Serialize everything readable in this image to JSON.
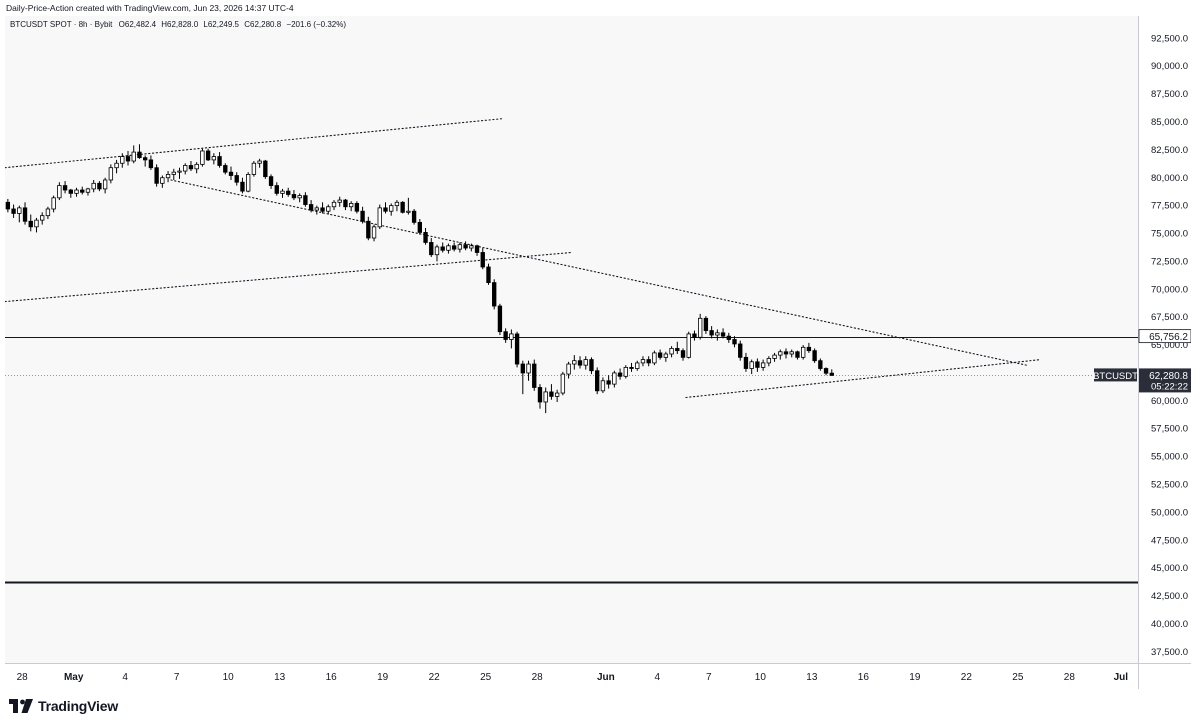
{
  "header": {
    "credit": "Daily-Price-Action created with TradingView.com, Jun 23, 2026 14:37 UTC-4"
  },
  "legend": {
    "symbol_text": "BTCUSDT SPOT · 8h · Bybit",
    "open_label": "O",
    "open": "62,482.4",
    "high_label": "H",
    "high": "62,828.0",
    "low_label": "L",
    "low": "62,249.5",
    "close_label": "C",
    "close": "62,280.8",
    "change": "−201.6 (−0.32%)"
  },
  "footer": {
    "brand": "TradingView"
  },
  "colors": {
    "background": "#f8f8f8",
    "candle_up_fill": "#ffffff",
    "candle_down_fill": "#000000",
    "candle_border": "#000000",
    "axis_text": "#131722",
    "label_bg": "#2a2e39",
    "level_line": "#131722"
  },
  "chart_data": {
    "type": "candlestick",
    "symbol": "BTCUSDT",
    "timeframe": "8h",
    "exchange": "Bybit",
    "ylim": [
      36500,
      94500
    ],
    "yticks": [
      37500,
      40000,
      42500,
      45000,
      47500,
      50000,
      52500,
      55000,
      57500,
      60000,
      62500,
      65000,
      67500,
      70000,
      72500,
      75000,
      77500,
      80000,
      82500,
      85000,
      87500,
      90000,
      92500
    ],
    "ytick_labels": [
      "37,500.0",
      "40,000.0",
      "42,500.0",
      "45,000.0",
      "47,500.0",
      "50,000.0",
      "52,500.0",
      "55,000.0",
      "57,500.0",
      "60,000.0",
      "62,500.0",
      "65,000.0",
      "67,500.0",
      "70,000.0",
      "72,500.0",
      "75,000.0",
      "77,500.0",
      "80,000.0",
      "82,500.0",
      "85,000.0",
      "87,500.0",
      "90,000.0",
      "92,500.0"
    ],
    "xlim": [
      "2026-04-27",
      "2026-07-02"
    ],
    "xticks": [
      {
        "date": "2026-04-28",
        "label": "28"
      },
      {
        "date": "2026-05-01",
        "label": "May",
        "bold": true
      },
      {
        "date": "2026-05-04",
        "label": "4"
      },
      {
        "date": "2026-05-07",
        "label": "7"
      },
      {
        "date": "2026-05-10",
        "label": "10"
      },
      {
        "date": "2026-05-13",
        "label": "13"
      },
      {
        "date": "2026-05-16",
        "label": "16"
      },
      {
        "date": "2026-05-19",
        "label": "19"
      },
      {
        "date": "2026-05-22",
        "label": "22"
      },
      {
        "date": "2026-05-25",
        "label": "25"
      },
      {
        "date": "2026-05-28",
        "label": "28"
      },
      {
        "date": "2026-06-01",
        "label": "Jun",
        "bold": true
      },
      {
        "date": "2026-06-04",
        "label": "4"
      },
      {
        "date": "2026-06-07",
        "label": "7"
      },
      {
        "date": "2026-06-10",
        "label": "10"
      },
      {
        "date": "2026-06-13",
        "label": "13"
      },
      {
        "date": "2026-06-16",
        "label": "16"
      },
      {
        "date": "2026-06-19",
        "label": "19"
      },
      {
        "date": "2026-06-22",
        "label": "22"
      },
      {
        "date": "2026-06-25",
        "label": "25"
      },
      {
        "date": "2026-06-28",
        "label": "28"
      },
      {
        "date": "2026-07-01",
        "label": "Jul",
        "bold": true
      }
    ],
    "candle_step_days": 0.3333,
    "first_candle_date": "2026-04-27T00:00",
    "candles": [
      [
        77800,
        78100,
        76900,
        77200
      ],
      [
        77200,
        77600,
        76400,
        76800
      ],
      [
        76800,
        77500,
        76000,
        77300
      ],
      [
        77300,
        77800,
        75800,
        76100
      ],
      [
        76100,
        76700,
        75200,
        75600
      ],
      [
        75600,
        76400,
        75100,
        76200
      ],
      [
        76200,
        76900,
        75800,
        76600
      ],
      [
        76600,
        77400,
        76300,
        77200
      ],
      [
        77200,
        78400,
        76900,
        78200
      ],
      [
        78200,
        79600,
        78000,
        79300
      ],
      [
        79300,
        79700,
        78600,
        78900
      ],
      [
        78900,
        79000,
        78200,
        78600
      ],
      [
        78600,
        79100,
        78300,
        78900
      ],
      [
        78900,
        79200,
        78500,
        78700
      ],
      [
        78700,
        79100,
        78400,
        79000
      ],
      [
        79000,
        79800,
        78700,
        79500
      ],
      [
        79500,
        79700,
        78800,
        79000
      ],
      [
        79000,
        80000,
        78600,
        79800
      ],
      [
        79800,
        81200,
        79500,
        80900
      ],
      [
        80900,
        81600,
        80400,
        81300
      ],
      [
        81300,
        82200,
        80900,
        81900
      ],
      [
        81900,
        82400,
        81100,
        81500
      ],
      [
        81500,
        82900,
        81300,
        82300
      ],
      [
        82300,
        83000,
        81700,
        81800
      ],
      [
        81800,
        82000,
        81000,
        81600
      ],
      [
        81600,
        82000,
        80700,
        80900
      ],
      [
        80900,
        81200,
        79200,
        79500
      ],
      [
        79500,
        80200,
        79100,
        80000
      ],
      [
        80000,
        80600,
        79600,
        80300
      ],
      [
        80300,
        80800,
        79800,
        80500
      ],
      [
        80500,
        80900,
        79900,
        80600
      ],
      [
        80600,
        81300,
        80300,
        81100
      ],
      [
        81100,
        81500,
        80600,
        80800
      ],
      [
        80800,
        81400,
        80400,
        81200
      ],
      [
        81200,
        82600,
        81000,
        82400
      ],
      [
        82400,
        82600,
        81500,
        81600
      ],
      [
        81600,
        82200,
        81200,
        81900
      ],
      [
        81900,
        82300,
        80900,
        81100
      ],
      [
        81100,
        81300,
        80300,
        80500
      ],
      [
        80500,
        81000,
        79800,
        80200
      ],
      [
        80200,
        80500,
        79300,
        79600
      ],
      [
        79600,
        80000,
        78600,
        78800
      ],
      [
        78800,
        80500,
        78700,
        80300
      ],
      [
        80300,
        81500,
        80100,
        81300
      ],
      [
        81300,
        81700,
        80900,
        81500
      ],
      [
        81500,
        81600,
        79900,
        80100
      ],
      [
        80100,
        80300,
        79000,
        79300
      ],
      [
        79300,
        79600,
        78400,
        78600
      ],
      [
        78600,
        79000,
        78200,
        78800
      ],
      [
        78800,
        79100,
        78300,
        78500
      ],
      [
        78500,
        78900,
        78000,
        78200
      ],
      [
        78200,
        78600,
        77800,
        78400
      ],
      [
        78400,
        78700,
        77400,
        77600
      ],
      [
        77600,
        78000,
        76900,
        77100
      ],
      [
        77100,
        77500,
        76700,
        77300
      ],
      [
        77300,
        77800,
        76800,
        77000
      ],
      [
        77000,
        77600,
        76700,
        77400
      ],
      [
        77400,
        78000,
        77100,
        77800
      ],
      [
        77800,
        78300,
        77400,
        78000
      ],
      [
        78000,
        78100,
        77100,
        77400
      ],
      [
        77400,
        77900,
        77000,
        77700
      ],
      [
        77700,
        77900,
        76800,
        77000
      ],
      [
        77000,
        77400,
        75900,
        76100
      ],
      [
        76100,
        76500,
        74400,
        74600
      ],
      [
        74600,
        75800,
        74300,
        75600
      ],
      [
        75600,
        77600,
        75400,
        77300
      ],
      [
        77300,
        77800,
        76800,
        77000
      ],
      [
        77000,
        77700,
        76600,
        77500
      ],
      [
        77500,
        78000,
        77000,
        77800
      ],
      [
        77800,
        77900,
        76800,
        76900
      ],
      [
        76900,
        78200,
        76700,
        77000
      ],
      [
        77000,
        77200,
        75800,
        76000
      ],
      [
        76000,
        76300,
        74900,
        75100
      ],
      [
        75100,
        75500,
        74000,
        74200
      ],
      [
        74200,
        74600,
        72900,
        73100
      ],
      [
        73100,
        74000,
        72500,
        73800
      ],
      [
        73800,
        74200,
        73300,
        73500
      ],
      [
        73500,
        74100,
        73200,
        73900
      ],
      [
        73900,
        74200,
        73400,
        73600
      ],
      [
        73600,
        74200,
        73300,
        74000
      ],
      [
        74000,
        74300,
        73500,
        73700
      ],
      [
        73700,
        74100,
        73400,
        73900
      ],
      [
        73900,
        74000,
        73000,
        73300
      ],
      [
        73300,
        73700,
        71800,
        72000
      ],
      [
        72000,
        72300,
        70400,
        70600
      ],
      [
        70600,
        70900,
        68200,
        68500
      ],
      [
        68500,
        68700,
        65900,
        66200
      ],
      [
        66200,
        66500,
        65200,
        65500
      ],
      [
        65500,
        66400,
        64700,
        66000
      ],
      [
        66000,
        66200,
        63000,
        63300
      ],
      [
        63300,
        63600,
        60600,
        62500
      ],
      [
        62500,
        63600,
        61800,
        63300
      ],
      [
        63300,
        63700,
        60900,
        61200
      ],
      [
        61200,
        61500,
        59300,
        59900
      ],
      [
        59900,
        61200,
        58900,
        60800
      ],
      [
        60800,
        61500,
        60100,
        60400
      ],
      [
        60400,
        61000,
        59900,
        60700
      ],
      [
        60700,
        62600,
        60500,
        62400
      ],
      [
        62400,
        63500,
        62000,
        63300
      ],
      [
        63300,
        64100,
        62800,
        63600
      ],
      [
        63600,
        64000,
        62900,
        63200
      ],
      [
        63200,
        64000,
        62800,
        63700
      ],
      [
        63700,
        63900,
        62400,
        62700
      ],
      [
        62700,
        63000,
        60600,
        60900
      ],
      [
        60900,
        62100,
        60700,
        61800
      ],
      [
        61800,
        62300,
        61100,
        61500
      ],
      [
        61500,
        62700,
        61200,
        62500
      ],
      [
        62500,
        62900,
        61900,
        62200
      ],
      [
        62200,
        63200,
        62000,
        63000
      ],
      [
        63000,
        63400,
        62600,
        62900
      ],
      [
        62900,
        63600,
        62700,
        63400
      ],
      [
        63400,
        64000,
        63100,
        63700
      ],
      [
        63700,
        64000,
        63100,
        63400
      ],
      [
        63400,
        64500,
        63200,
        64300
      ],
      [
        64300,
        64600,
        63700,
        63900
      ],
      [
        63900,
        64400,
        63500,
        64200
      ],
      [
        64200,
        64900,
        63900,
        64700
      ],
      [
        64700,
        65300,
        64200,
        64500
      ],
      [
        64500,
        64700,
        63600,
        63900
      ],
      [
        63900,
        66200,
        63800,
        66000
      ],
      [
        66000,
        66300,
        65400,
        65700
      ],
      [
        65700,
        67800,
        65500,
        67400
      ],
      [
        67400,
        67600,
        66000,
        66300
      ],
      [
        66300,
        66700,
        65600,
        65900
      ],
      [
        65900,
        66400,
        65400,
        66100
      ],
      [
        66100,
        66500,
        65600,
        65800
      ],
      [
        65800,
        66100,
        65200,
        65500
      ],
      [
        65500,
        65800,
        64800,
        65100
      ],
      [
        65100,
        65400,
        63600,
        63900
      ],
      [
        63900,
        64300,
        62600,
        62900
      ],
      [
        62900,
        63700,
        62400,
        63500
      ],
      [
        63500,
        63800,
        62600,
        63000
      ],
      [
        63000,
        63700,
        62700,
        63400
      ],
      [
        63400,
        64000,
        63100,
        63800
      ],
      [
        63800,
        64300,
        63500,
        64100
      ],
      [
        64100,
        64600,
        63700,
        64400
      ],
      [
        64400,
        64700,
        63800,
        64200
      ],
      [
        64200,
        64600,
        63900,
        64400
      ],
      [
        64400,
        64500,
        63700,
        63900
      ],
      [
        63900,
        65000,
        63700,
        64800
      ],
      [
        64800,
        65200,
        64300,
        64500
      ],
      [
        64500,
        64700,
        63400,
        63600
      ],
      [
        63600,
        63800,
        62700,
        62900
      ],
      [
        62900,
        63000,
        62300,
        62480
      ],
      [
        62482.4,
        62828.0,
        62249.5,
        62280.8
      ]
    ],
    "trend_lines": [
      {
        "style": "dotted",
        "from": {
          "date": "2026-04-27T00:00",
          "price": 80900
        },
        "to": {
          "date": "2026-05-26T00:00",
          "price": 85300
        }
      },
      {
        "style": "dotted",
        "from": {
          "date": "2026-04-27T00:00",
          "price": 68900
        },
        "to": {
          "date": "2026-05-30T00:00",
          "price": 73300
        }
      },
      {
        "style": "dotted",
        "from": {
          "date": "2026-05-06T16:00",
          "price": 79800
        },
        "to": {
          "date": "2026-06-25T12:00",
          "price": 63200
        }
      },
      {
        "style": "dotted",
        "from": {
          "date": "2026-06-05T16:00",
          "price": 60300
        },
        "to": {
          "date": "2026-06-26T08:00",
          "price": 63700
        }
      }
    ],
    "horizontal_levels": [
      {
        "price": 65756.2,
        "label": "65,756.2",
        "width": 1
      },
      {
        "price": 43800,
        "label": "",
        "width": 2
      }
    ],
    "last_price": {
      "price": 62280.8,
      "symbol_label": "BTCUSDT",
      "label": "62,280.8",
      "countdown": "05:22:22"
    },
    "underlying_level_text": "65,000.0"
  }
}
